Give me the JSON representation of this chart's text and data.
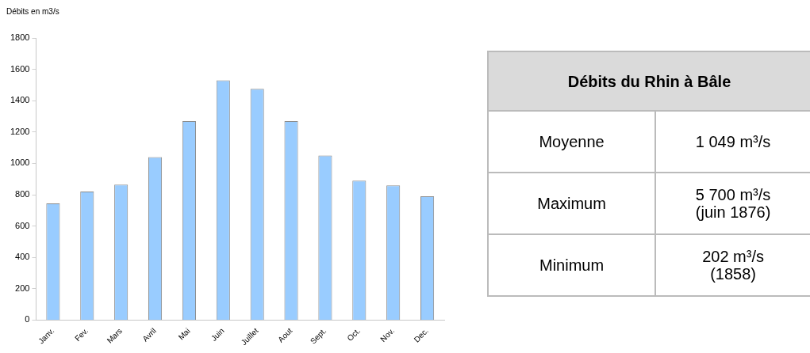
{
  "chart_data": [
    {
      "type": "bar",
      "ylabel": "Débits en m3/s",
      "categories": [
        "Janv.",
        "Fev.",
        "Mars",
        "Avril",
        "Mai",
        "Juin",
        "Juillet",
        "Aout",
        "Sept.",
        "Oct.",
        "Nov.",
        "Dec."
      ],
      "values": [
        745,
        820,
        865,
        1040,
        1270,
        1530,
        1475,
        1270,
        1050,
        890,
        860,
        790
      ],
      "color": "#99ccff",
      "ylim": [
        0,
        1800
      ],
      "yticks": [
        0,
        200,
        400,
        600,
        800,
        1000,
        1200,
        1400,
        1600,
        1800
      ],
      "grid": false,
      "legend": false
    },
    {
      "type": "other",
      "title": "Débits du Rhin à Bâle",
      "annotations": [
        "Moyenne",
        "1 049 m³/s",
        "Maximum",
        "5 700 m³/s\n(juin 1876)",
        "Minimum",
        "202 m³/s\n(1858)"
      ]
    }
  ]
}
